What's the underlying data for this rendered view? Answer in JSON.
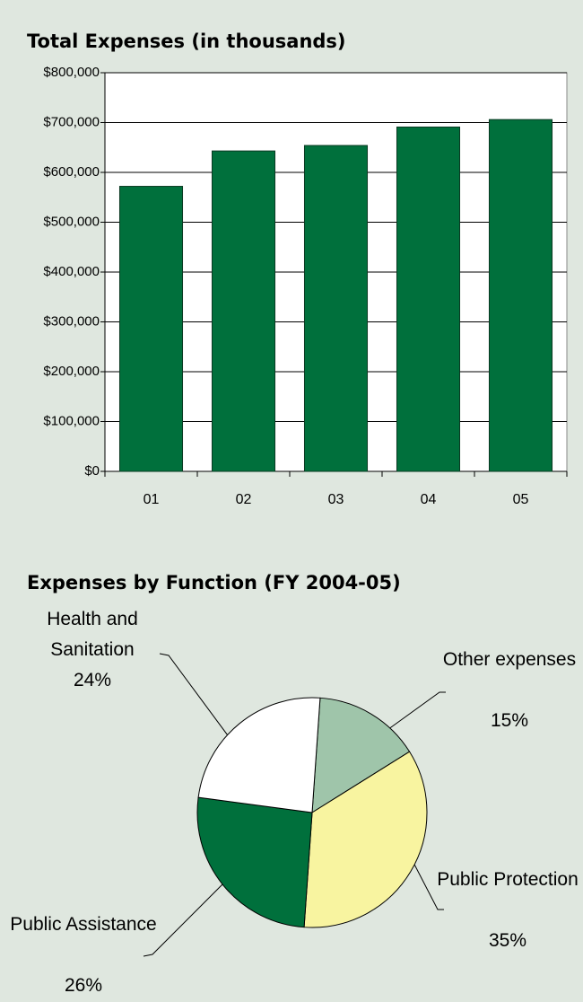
{
  "chart_data": [
    {
      "type": "bar",
      "title": "Total Expenses (in thousands)",
      "categories": [
        "01",
        "02",
        "03",
        "04",
        "05"
      ],
      "values": [
        572000,
        643000,
        654000,
        691000,
        706000
      ],
      "color": "#00703c",
      "ylim": [
        0,
        800000
      ],
      "yticks": [
        {
          "value": 0,
          "label": "$0"
        },
        {
          "value": 100000,
          "label": "$100,000"
        },
        {
          "value": 200000,
          "label": "$200,000"
        },
        {
          "value": 300000,
          "label": "$300,000"
        },
        {
          "value": 400000,
          "label": "$400,000"
        },
        {
          "value": 500000,
          "label": "$500,000"
        },
        {
          "value": 600000,
          "label": "$600,000"
        },
        {
          "value": 700000,
          "label": "$700,000"
        },
        {
          "value": 800000,
          "label": "$800,000"
        }
      ],
      "grid": true
    },
    {
      "type": "pie",
      "title": "Expenses by Function (FY 2004-05)",
      "categories": [
        "Other expenses",
        "Public Protection",
        "Public Assistance",
        "Health and Sanitation"
      ],
      "values": [
        15,
        35,
        26,
        24
      ],
      "value_labels": [
        "15%",
        "35%",
        "26%",
        "24%"
      ],
      "colors": [
        "#9fc5aa",
        "#f8f4a0",
        "#00703c",
        "#ffffff"
      ]
    }
  ]
}
